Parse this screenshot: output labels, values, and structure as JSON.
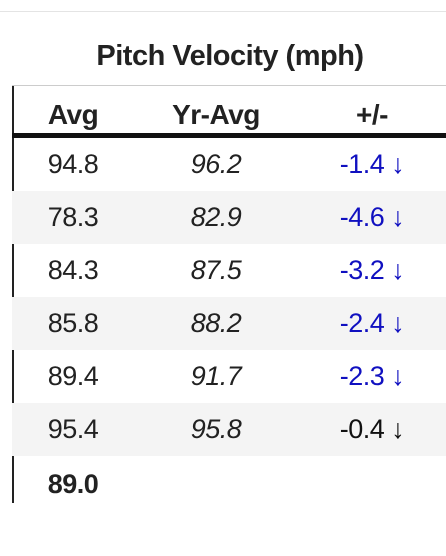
{
  "header": {
    "title": "Pitch Velocity (mph)"
  },
  "table": {
    "columns": [
      "Avg",
      "Yr-Avg",
      "+/-"
    ],
    "rows": [
      {
        "avg": "94.8",
        "yr_avg": "96.2",
        "diff": "-1.4 ↓",
        "color": "#1010c0"
      },
      {
        "avg": "78.3",
        "yr_avg": "82.9",
        "diff": "-4.6 ↓",
        "color": "#1010c0"
      },
      {
        "avg": "84.3",
        "yr_avg": "87.5",
        "diff": "-3.2 ↓",
        "color": "#1010c0"
      },
      {
        "avg": "85.8",
        "yr_avg": "88.2",
        "diff": "-2.4 ↓",
        "color": "#1010c0"
      },
      {
        "avg": "89.4",
        "yr_avg": "91.7",
        "diff": "-2.3 ↓",
        "color": "#1010c0"
      },
      {
        "avg": "95.4",
        "yr_avg": "95.8",
        "diff": "-0.4 ↓",
        "color": "#111111"
      }
    ],
    "footer": {
      "avg": "89.0"
    }
  }
}
